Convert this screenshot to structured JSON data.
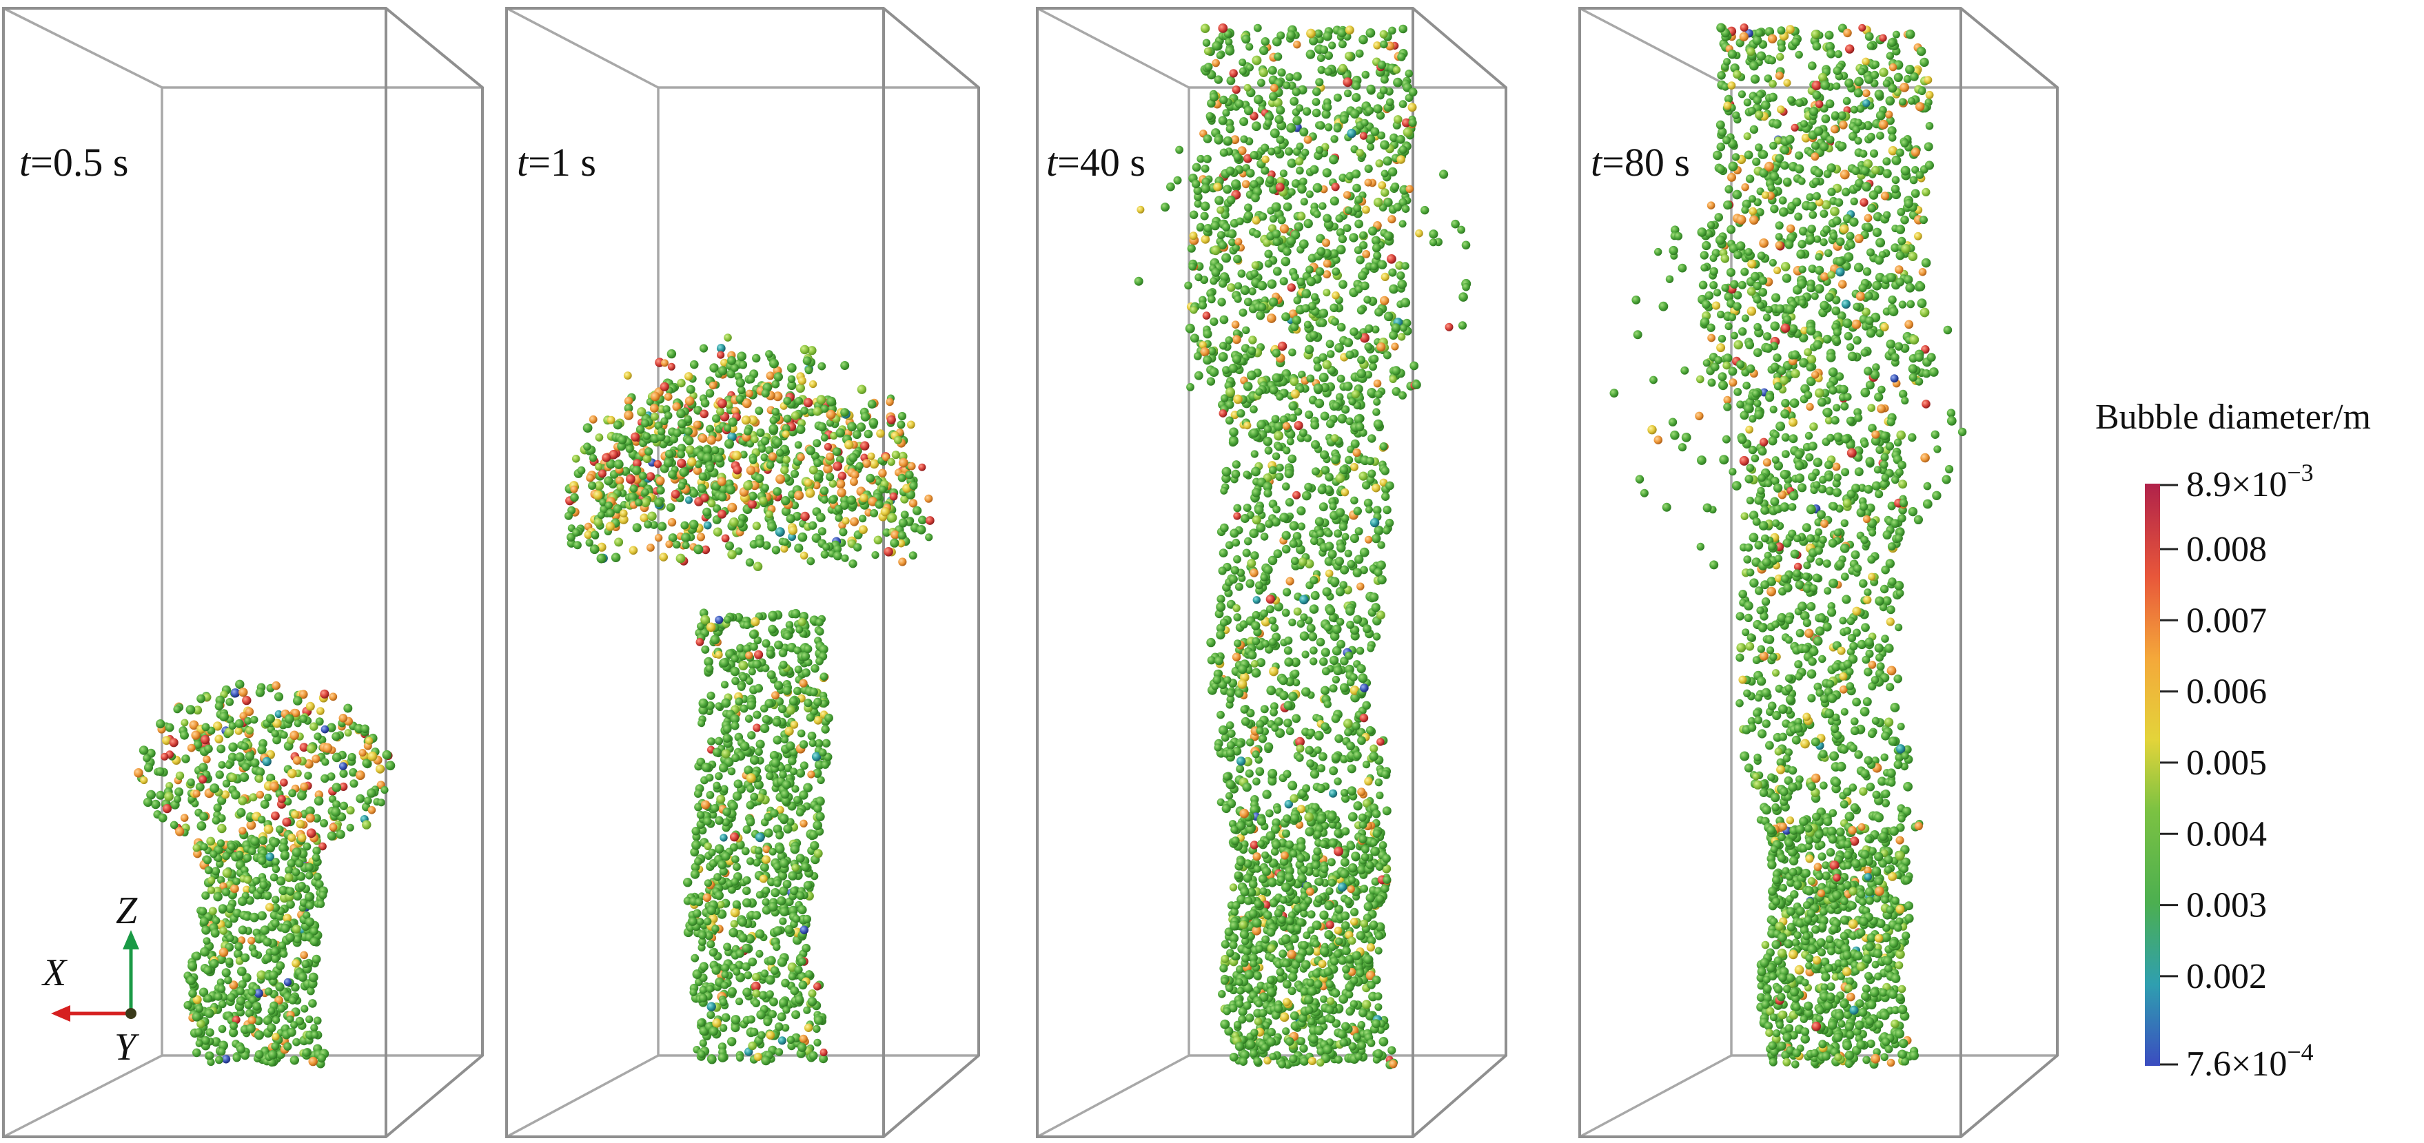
{
  "panels": [
    {
      "time_var": "t",
      "time_value": "=0.5 s"
    },
    {
      "time_var": "t",
      "time_value": "=1 s"
    },
    {
      "time_var": "t",
      "time_value": "=40 s"
    },
    {
      "time_var": "t",
      "time_value": "=80 s"
    }
  ],
  "axis_triad": {
    "x": "X",
    "y": "Y",
    "z": "Z",
    "colors": {
      "x": "#d62020",
      "z": "#1a9a45",
      "origin": "#3a3a1a"
    }
  },
  "colorbar": {
    "title": "Bubble diameter/m",
    "max_label": {
      "base": "8.9×10",
      "exp": "−3"
    },
    "min_label": {
      "base": "7.6×10",
      "exp": "−4"
    },
    "ticks": [
      "0.008",
      "0.007",
      "0.006",
      "0.005",
      "0.004",
      "0.003",
      "0.002"
    ],
    "min": 0.00076,
    "max": 0.0089,
    "colors": [
      "#3b4cc0",
      "#2f9fb0",
      "#4caf50",
      "#7cc242",
      "#e3d43a",
      "#f4a83a",
      "#e8573a",
      "#b0224a"
    ]
  }
}
